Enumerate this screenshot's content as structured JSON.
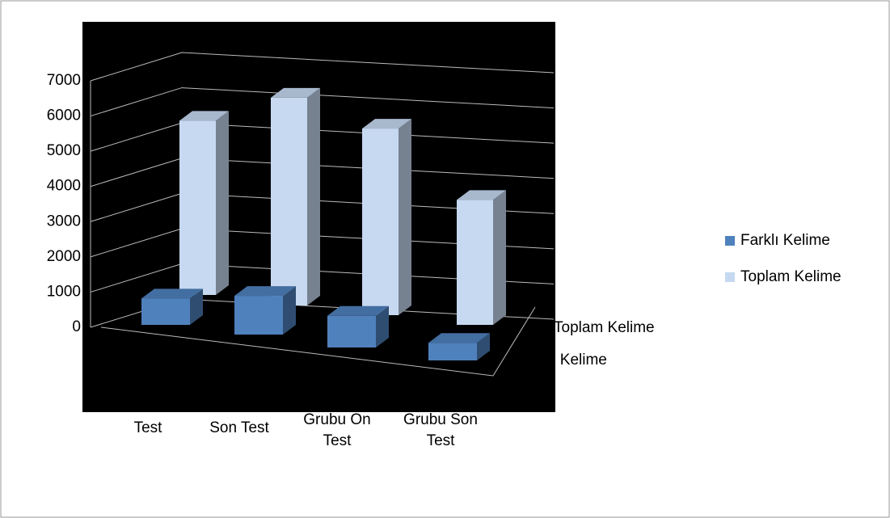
{
  "chart_data": {
    "type": "bar3d",
    "categories": [
      "Test",
      "Son Test",
      "Grubu On Test",
      "Grubu Son Test"
    ],
    "series": [
      {
        "name": "Farklı Kelime",
        "color": "#4f81bd",
        "values": [
          750,
          1100,
          900,
          500
        ]
      },
      {
        "name": "Toplam Kelime",
        "color": "#c6d9f1",
        "values": [
          4950,
          5900,
          5300,
          3550
        ]
      }
    ],
    "ylim": [
      0,
      7000
    ],
    "yticks": [
      0,
      1000,
      2000,
      3000,
      4000,
      5000,
      6000,
      7000
    ],
    "grid": true,
    "legend": "right"
  }
}
